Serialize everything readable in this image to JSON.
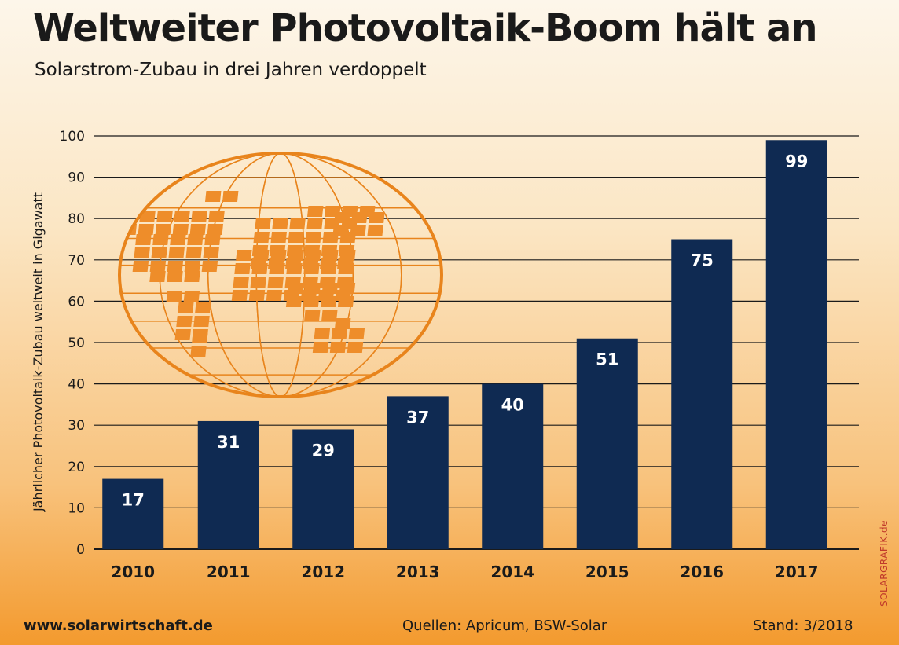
{
  "header": {
    "title": "Weltweiter Photovoltaik-Boom hält an",
    "subtitle": "Solarstrom-Zubau in drei Jahren verdoppelt"
  },
  "footer": {
    "url": "www.solarwirtschaft.de",
    "sources": "Quellen: Apricum, BSW-Solar",
    "date": "Stand: 3/2018",
    "credit": "SOLARGRAFIK.de"
  },
  "colors": {
    "bar": "#0f2a52",
    "gridline": "#1a1a1a",
    "globe": "#e8841c",
    "panel": "#ee8d2a",
    "credit": "#c0392b"
  },
  "icons": {
    "globe": "solar-globe-icon"
  },
  "chart_data": {
    "type": "bar",
    "title": "Weltweiter Photovoltaik-Boom hält an",
    "subtitle": "Solarstrom-Zubau in drei Jahren verdoppelt",
    "ylabel": "Jährlicher Photovoltaik-Zubau weltweit in Gigawatt",
    "xlabel": "",
    "ylim": [
      0,
      100
    ],
    "yticks": [
      0,
      10,
      20,
      30,
      40,
      50,
      60,
      70,
      80,
      90,
      100
    ],
    "categories": [
      "2010",
      "2011",
      "2012",
      "2013",
      "2014",
      "2015",
      "2016",
      "2017"
    ],
    "values": [
      17,
      31,
      29,
      37,
      40,
      51,
      75,
      99
    ],
    "data_labels": [
      "17",
      "31",
      "29",
      "37",
      "40",
      "51",
      "75",
      "99"
    ],
    "grid": true
  }
}
